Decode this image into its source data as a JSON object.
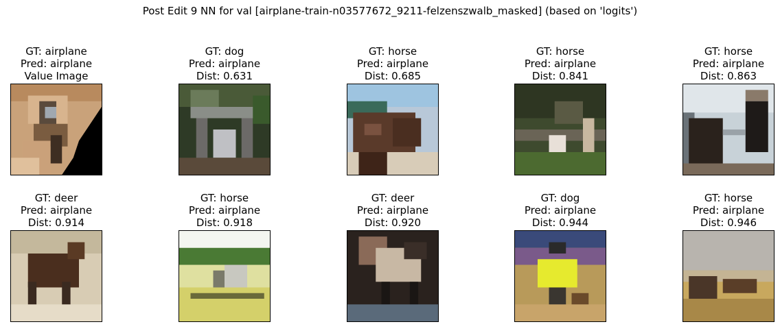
{
  "figure": {
    "title": "Post Edit 9 NN for val [airplane-train-n03577672_9211-felzenszwalb_masked] (based on 'logits')"
  },
  "panels": [
    {
      "gt": "GT: airplane",
      "pred": "Pred: airplane",
      "extra": "Value Image"
    },
    {
      "gt": "GT: dog",
      "pred": "Pred: airplane",
      "extra": "Dist: 0.631"
    },
    {
      "gt": "GT: horse",
      "pred": "Pred: airplane",
      "extra": "Dist: 0.685"
    },
    {
      "gt": "GT: horse",
      "pred": "Pred: airplane",
      "extra": "Dist: 0.841"
    },
    {
      "gt": "GT: horse",
      "pred": "Pred: airplane",
      "extra": "Dist: 0.863"
    },
    {
      "gt": "GT: deer",
      "pred": "Pred: airplane",
      "extra": "Dist: 0.914"
    },
    {
      "gt": "GT: horse",
      "pred": "Pred: airplane",
      "extra": "Dist: 0.918"
    },
    {
      "gt": "GT: deer",
      "pred": "Pred: airplane",
      "extra": "Dist: 0.920"
    },
    {
      "gt": "GT: dog",
      "pred": "Pred: airplane",
      "extra": "Dist: 0.944"
    },
    {
      "gt": "GT: horse",
      "pred": "Pred: airplane",
      "extra": "Dist: 0.946"
    }
  ]
}
